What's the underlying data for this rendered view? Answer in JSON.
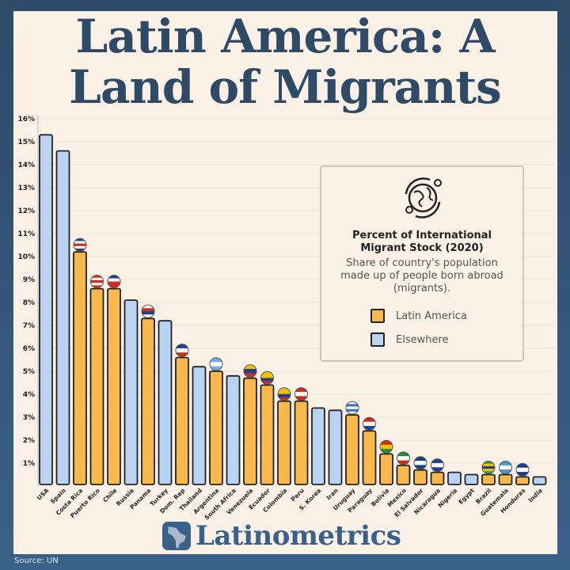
{
  "title": {
    "line1": "Latin America: A",
    "line2": "Land of Migrants"
  },
  "legend": {
    "icon": "globe-migration-icon",
    "title_line1": "Percent of International",
    "title_line2": "Migrant Stock (2020)",
    "subtitle_line1": "Share of country's population",
    "subtitle_line2": "made up of people born abroad",
    "subtitle_line3": "(migrants).",
    "items": [
      {
        "label": "Latin America",
        "color": "#f9b84c"
      },
      {
        "label": "Elsewhere",
        "color": "#b9d3f3"
      }
    ]
  },
  "brand": {
    "name": "Latinometrics",
    "icon": "latin-america-map-icon"
  },
  "source": "Source: UN",
  "chart_data": {
    "type": "bar",
    "title": "Percent of International Migrant Stock (2020)",
    "ylim": [
      0,
      16
    ],
    "yticks": [
      "1%",
      "2%",
      "3%",
      "4%",
      "5%",
      "6%",
      "7%",
      "8%",
      "9%",
      "10%",
      "11%",
      "12%",
      "13%",
      "14%",
      "15%",
      "16%"
    ],
    "grid": true,
    "legend_position": "right",
    "categories": [
      "USA",
      "Spain",
      "Costa Rica",
      "Puerto Rico",
      "Chile",
      "Russia",
      "Panama",
      "Turkey",
      "Dom. Rep",
      "Thailand",
      "Argentina",
      "South Africa",
      "Venezuela",
      "Ecuador",
      "Colombia",
      "Peru",
      "S. Korea",
      "Iran",
      "Uruguay",
      "Paraguay",
      "Bolivia",
      "Mexico",
      "El Salvador",
      "Nicaragua",
      "Nigeria",
      "Egypt",
      "Brazil",
      "Guatemala",
      "Honduras",
      "India"
    ],
    "values": [
      15.3,
      14.6,
      10.2,
      8.6,
      8.6,
      8.1,
      7.3,
      7.2,
      5.6,
      5.2,
      5.0,
      4.8,
      4.7,
      4.4,
      3.7,
      3.7,
      3.4,
      3.3,
      3.1,
      2.4,
      1.4,
      0.9,
      0.7,
      0.6,
      0.6,
      0.5,
      0.5,
      0.5,
      0.4,
      0.4
    ],
    "group": [
      "Elsewhere",
      "Elsewhere",
      "Latin America",
      "Latin America",
      "Latin America",
      "Elsewhere",
      "Latin America",
      "Elsewhere",
      "Latin America",
      "Elsewhere",
      "Latin America",
      "Elsewhere",
      "Latin America",
      "Latin America",
      "Latin America",
      "Latin America",
      "Elsewhere",
      "Elsewhere",
      "Latin America",
      "Latin America",
      "Latin America",
      "Latin America",
      "Latin America",
      "Latin America",
      "Elsewhere",
      "Elsewhere",
      "Latin America",
      "Latin America",
      "Latin America",
      "Elsewhere"
    ],
    "flag_colors": {
      "Costa Rica": [
        "#1f3f8f",
        "#ffffff",
        "#d52b1e",
        "#ffffff",
        "#1f3f8f"
      ],
      "Puerto Rico": [
        "#d52b1e",
        "#ffffff",
        "#d52b1e",
        "#ffffff",
        "#d52b1e"
      ],
      "Chile": [
        "#1f3f8f",
        "#ffffff",
        "#d52b1e",
        "#d52b1e"
      ],
      "Panama": [
        "#ffffff",
        "#d52b1e",
        "#1f3f8f",
        "#ffffff"
      ],
      "Dom. Rep": [
        "#1f3f8f",
        "#ffffff",
        "#d52b1e"
      ],
      "Argentina": [
        "#74acdf",
        "#ffffff",
        "#74acdf"
      ],
      "Venezuela": [
        "#f4c300",
        "#1f3f8f",
        "#d52b1e"
      ],
      "Ecuador": [
        "#f4c300",
        "#f4c300",
        "#1f3f8f",
        "#d52b1e"
      ],
      "Colombia": [
        "#f4c300",
        "#f4c300",
        "#1f3f8f",
        "#d52b1e"
      ],
      "Peru": [
        "#d52b1e",
        "#ffffff",
        "#d52b1e"
      ],
      "Uruguay": [
        "#ffffff",
        "#3a74c4",
        "#ffffff",
        "#3a74c4",
        "#ffffff"
      ],
      "Paraguay": [
        "#d52b1e",
        "#ffffff",
        "#1f3f8f"
      ],
      "Bolivia": [
        "#d52b1e",
        "#f4c300",
        "#1f8f3f"
      ],
      "Mexico": [
        "#1f8f3f",
        "#ffffff",
        "#d52b1e"
      ],
      "El Salvador": [
        "#1f3f8f",
        "#ffffff",
        "#1f3f8f"
      ],
      "Nicaragua": [
        "#1f3f8f",
        "#ffffff",
        "#1f3f8f"
      ],
      "Brazil": [
        "#1f9f3f",
        "#f4c300",
        "#1f3f8f",
        "#f4c300",
        "#1f9f3f"
      ],
      "Guatemala": [
        "#4997d0",
        "#ffffff",
        "#4997d0"
      ],
      "Honduras": [
        "#1f3f8f",
        "#ffffff",
        "#1f3f8f"
      ]
    }
  }
}
